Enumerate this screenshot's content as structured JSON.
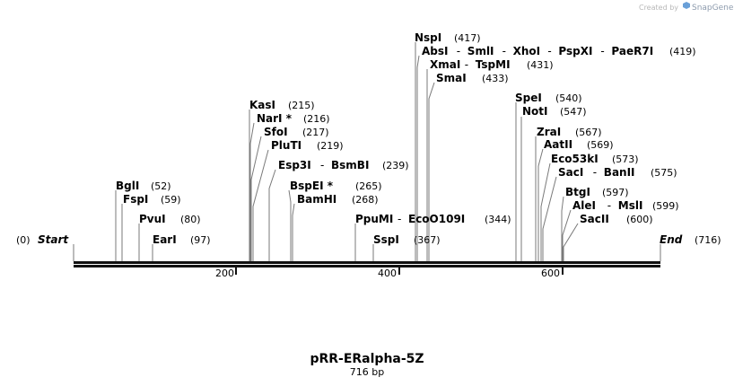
{
  "credit": {
    "prefix": "Created by",
    "brand": "SnapGene"
  },
  "map": {
    "name": "pRR-ERalpha-5Z",
    "length_label": "716 bp",
    "length": 716,
    "start_label": "Start",
    "end_label": "End",
    "start_pos": "(0)",
    "end_pos": "(716)",
    "ticks": [
      "200",
      "400",
      "600"
    ]
  },
  "labels": [
    {
      "row": 0,
      "names": [
        "NspI"
      ],
      "pos": "(417)"
    },
    {
      "row": 1,
      "names": [
        "AbsI",
        "SmlI",
        "XhoI",
        "PspXI",
        "PaeR7I"
      ],
      "pos": "(419)"
    },
    {
      "row": 2,
      "names": [
        "XmaI",
        "TspMI"
      ],
      "pos": "(431)"
    },
    {
      "row": 3,
      "names": [
        "SmaI"
      ],
      "pos": "(433)"
    },
    {
      "row": 4,
      "names": [
        "SpeI"
      ],
      "pos": "(540)"
    },
    {
      "row": 5,
      "names": [
        "NotI"
      ],
      "pos": "(547)"
    },
    {
      "row": 6,
      "names": [
        "KasI"
      ],
      "pos": "(215)"
    },
    {
      "row": 7,
      "names": [
        "NarI *"
      ],
      "pos": "(216)"
    },
    {
      "row": 8,
      "names": [
        "SfoI"
      ],
      "pos": "(217)"
    },
    {
      "row": 9,
      "names": [
        "ZraI"
      ],
      "pos": "(567)"
    },
    {
      "row": 10,
      "names": [
        "PluTI"
      ],
      "pos": "(219)"
    },
    {
      "row": 11,
      "names": [
        "AatII"
      ],
      "pos": "(569)"
    },
    {
      "row": 12,
      "names": [
        "Eco53kI"
      ],
      "pos": "(573)"
    },
    {
      "row": 13,
      "names": [
        "Esp3I",
        "BsmBI"
      ],
      "pos": "(239)"
    },
    {
      "row": 14,
      "names": [
        "SacI",
        "BanII"
      ],
      "pos": "(575)"
    },
    {
      "row": 15,
      "names": [
        "BglI"
      ],
      "pos": "(52)"
    },
    {
      "row": 16,
      "names": [
        "BspEI *"
      ],
      "pos": "(265)"
    },
    {
      "row": 17,
      "names": [
        "BtgI"
      ],
      "pos": "(597)"
    },
    {
      "row": 18,
      "names": [
        "FspI"
      ],
      "pos": "(59)"
    },
    {
      "row": 19,
      "names": [
        "BamHI"
      ],
      "pos": "(268)"
    },
    {
      "row": 20,
      "names": [
        "AleI",
        "MslI"
      ],
      "pos": "(599)"
    },
    {
      "row": 21,
      "names": [
        "PvuI"
      ],
      "pos": "(80)"
    },
    {
      "row": 22,
      "names": [
        "PpuMI",
        "EcoO109I"
      ],
      "pos": "(344)"
    },
    {
      "row": 23,
      "names": [
        "SacII"
      ],
      "pos": "(600)"
    },
    {
      "row": 24,
      "names": [
        "EarI"
      ],
      "pos": "(97)"
    },
    {
      "row": 25,
      "names": [
        "SspI"
      ],
      "pos": "(367)"
    }
  ]
}
